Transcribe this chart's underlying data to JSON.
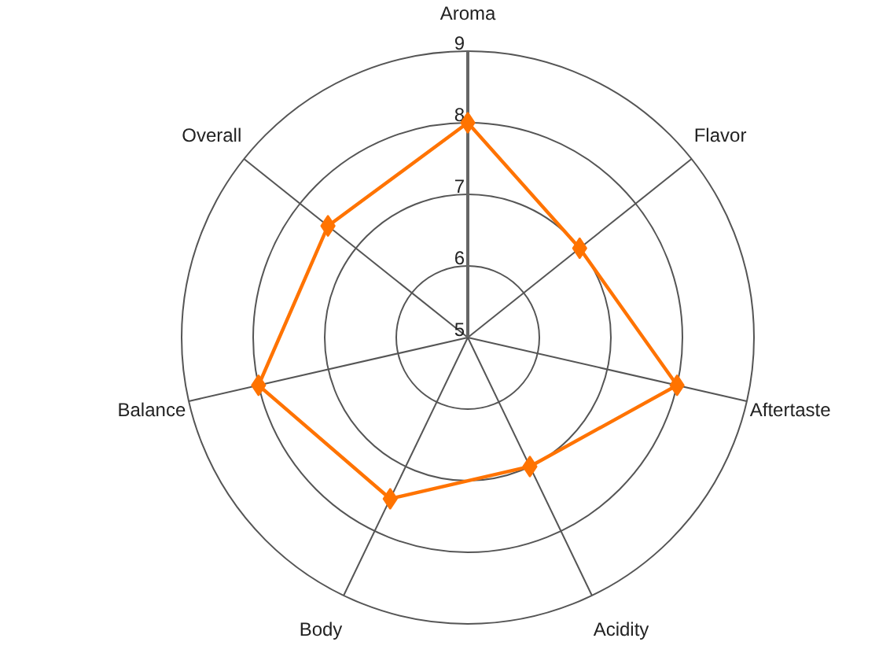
{
  "chart_data": {
    "type": "radar",
    "categories": [
      "Aroma",
      "Flavor",
      "Aftertaste",
      "Acidity",
      "Body",
      "Balance",
      "Overall"
    ],
    "series": [
      {
        "color": "#ff7300",
        "values": [
          8,
          7,
          8,
          7,
          7.5,
          8,
          7.5
        ]
      }
    ],
    "ylim": [
      5,
      9
    ],
    "yticks": [
      5,
      6,
      7,
      8,
      9
    ],
    "marker": "diamond",
    "line_style": "solid",
    "grid": true
  }
}
